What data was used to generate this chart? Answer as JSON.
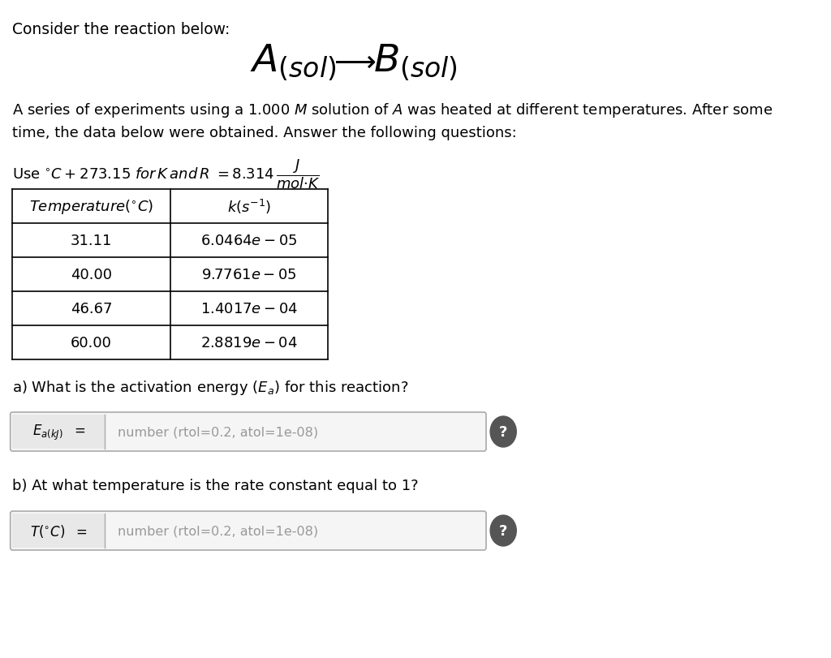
{
  "bg_color": "#ffffff",
  "title_line1": "Consider the reaction below:",
  "placeholder_a": "number (rtol=0.2, atol=1e-08)",
  "placeholder_b": "number (rtol=0.2, atol=1e-08)",
  "text_color": "#000000",
  "button_color": "#555555",
  "table_data": [
    [
      "31.11",
      "6.0464e - 05"
    ],
    [
      "40.00",
      "9.7761e - 05"
    ],
    [
      "46.67",
      "1.4017e - 04"
    ],
    [
      "60.00",
      "2.8819e - 04"
    ]
  ]
}
